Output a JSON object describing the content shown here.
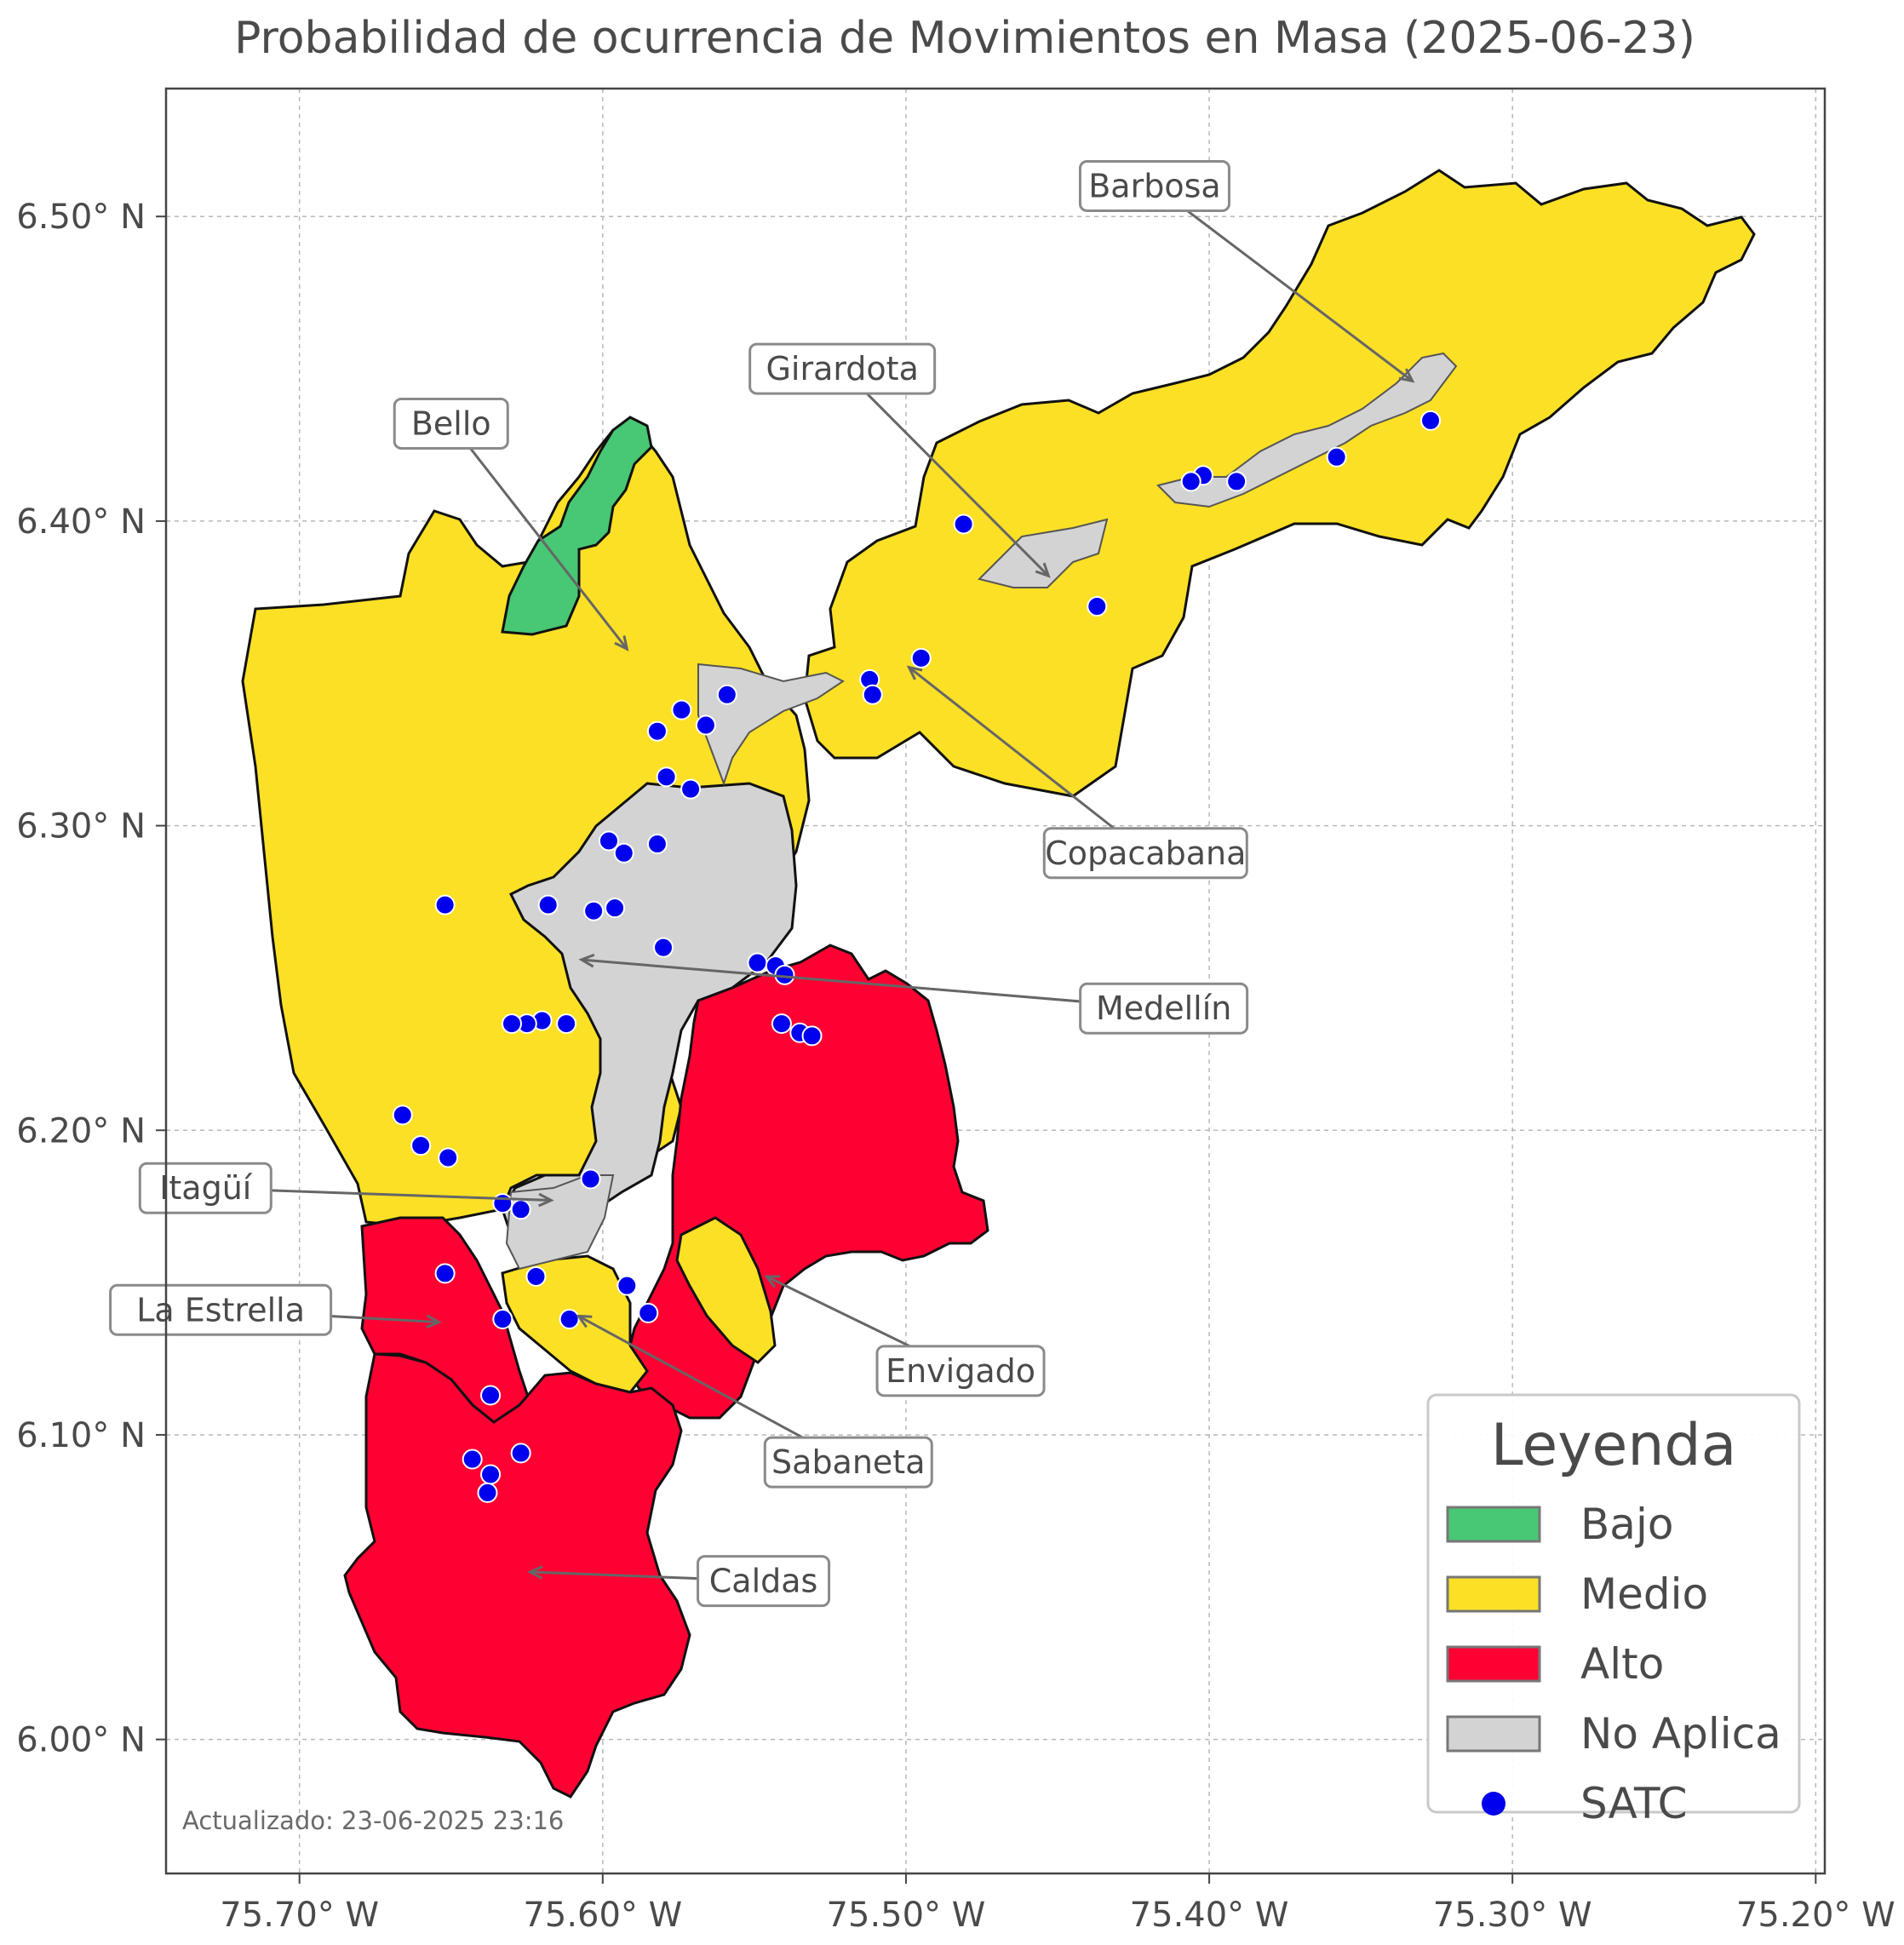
{
  "title": "Probabilidad de ocurrencia de Movimientos en Masa (2025-06-23)",
  "updated": "Actualizado: 23-06-2025 23:16",
  "axes": {
    "x_ticks": [
      "75.70° W",
      "75.60° W",
      "75.50° W",
      "75.40° W",
      "75.30° W",
      "75.20° W"
    ],
    "y_ticks": [
      "6.50° N",
      "6.40° N",
      "6.30° N",
      "6.20° N",
      "6.10° N",
      "6.00° N"
    ],
    "x_values": [
      -75.7,
      -75.6,
      -75.5,
      -75.4,
      -75.3,
      -75.2
    ],
    "y_values": [
      6.5,
      6.4,
      6.3,
      6.2,
      6.1,
      6.0
    ],
    "grid": true,
    "lon_range": [
      -75.744,
      -75.197
    ],
    "lat_range": [
      5.956,
      6.542
    ]
  },
  "legend": {
    "title": "Leyenda",
    "items": [
      {
        "label": "Bajo",
        "color": "#48c774",
        "kind": "patch"
      },
      {
        "label": "Medio",
        "color": "#fbe025",
        "kind": "patch"
      },
      {
        "label": "Alto",
        "color": "#ff0033",
        "kind": "patch"
      },
      {
        "label": "No Aplica",
        "color": "#d3d3d3",
        "kind": "patch"
      },
      {
        "label": "SATC",
        "color": "#0000ee",
        "kind": "dot"
      }
    ]
  },
  "municipalities": [
    {
      "name": "Barbosa",
      "level": "Medio"
    },
    {
      "name": "Girardota",
      "level": "Medio"
    },
    {
      "name": "Bello",
      "level": "Medio"
    },
    {
      "name": "Copacabana",
      "level": "Medio"
    },
    {
      "name": "Medellín",
      "level": "Medio"
    },
    {
      "name": "Itagüí",
      "level": "Medio"
    },
    {
      "name": "La Estrella",
      "level": "Alto"
    },
    {
      "name": "Envigado",
      "level": "Alto"
    },
    {
      "name": "Sabaneta",
      "level": "Medio"
    },
    {
      "name": "Caldas",
      "level": "Alto"
    }
  ],
  "labels": [
    {
      "name": "Barbosa",
      "lon": -75.418,
      "lat": 6.51,
      "arrow_lon": -75.333,
      "arrow_lat": 6.446
    },
    {
      "name": "Girardota",
      "lon": -75.521,
      "lat": 6.45,
      "arrow_lon": -75.453,
      "arrow_lat": 6.382
    },
    {
      "name": "Bello",
      "lon": -75.65,
      "lat": 6.432,
      "arrow_lon": -75.592,
      "arrow_lat": 6.358
    },
    {
      "name": "Copacabana",
      "lon": -75.421,
      "lat": 6.291,
      "arrow_lon": -75.499,
      "arrow_lat": 6.352
    },
    {
      "name": "Medellín",
      "lon": -75.415,
      "lat": 6.24,
      "arrow_lon": -75.607,
      "arrow_lat": 6.256
    },
    {
      "name": "Itagüí",
      "lon": -75.731,
      "lat": 6.181,
      "arrow_lon": -75.617,
      "arrow_lat": 6.177
    },
    {
      "name": "La Estrella",
      "lon": -75.726,
      "lat": 6.141,
      "arrow_lon": -75.654,
      "arrow_lat": 6.137
    },
    {
      "name": "Envigado",
      "lon": -75.482,
      "lat": 6.121,
      "arrow_lon": -75.546,
      "arrow_lat": 6.152
    },
    {
      "name": "Sabaneta",
      "lon": -75.519,
      "lat": 6.091,
      "arrow_lon": -75.608,
      "arrow_lat": 6.139
    },
    {
      "name": "Caldas",
      "lon": -75.547,
      "lat": 6.052,
      "arrow_lon": -75.624,
      "arrow_lat": 6.055
    }
  ],
  "satc_points": [
    [
      -75.327,
      6.433
    ],
    [
      -75.358,
      6.421
    ],
    [
      -75.391,
      6.413
    ],
    [
      -75.402,
      6.415
    ],
    [
      -75.406,
      6.413
    ],
    [
      -75.481,
      6.399
    ],
    [
      -75.437,
      6.372
    ],
    [
      -75.495,
      6.355
    ],
    [
      -75.512,
      6.348
    ],
    [
      -75.511,
      6.343
    ],
    [
      -75.559,
      6.343
    ],
    [
      -75.566,
      6.333
    ],
    [
      -75.574,
      6.338
    ],
    [
      -75.582,
      6.331
    ],
    [
      -75.579,
      6.316
    ],
    [
      -75.571,
      6.312
    ],
    [
      -75.598,
      6.295
    ],
    [
      -75.593,
      6.291
    ],
    [
      -75.582,
      6.294
    ],
    [
      -75.652,
      6.274
    ],
    [
      -75.618,
      6.274
    ],
    [
      -75.603,
      6.272
    ],
    [
      -75.596,
      6.273
    ],
    [
      -75.58,
      6.26
    ],
    [
      -75.549,
      6.255
    ],
    [
      -75.543,
      6.254
    ],
    [
      -75.54,
      6.251
    ],
    [
      -75.541,
      6.235
    ],
    [
      -75.535,
      6.232
    ],
    [
      -75.531,
      6.231
    ],
    [
      -75.62,
      6.236
    ],
    [
      -75.612,
      6.235
    ],
    [
      -75.625,
      6.235
    ],
    [
      -75.63,
      6.235
    ],
    [
      -75.666,
      6.205
    ],
    [
      -75.66,
      6.195
    ],
    [
      -75.651,
      6.191
    ],
    [
      -75.604,
      6.184
    ],
    [
      -75.633,
      6.176
    ],
    [
      -75.627,
      6.174
    ],
    [
      -75.652,
      6.153
    ],
    [
      -75.622,
      6.152
    ],
    [
      -75.592,
      6.149
    ],
    [
      -75.585,
      6.14
    ],
    [
      -75.611,
      6.138
    ],
    [
      -75.633,
      6.138
    ],
    [
      -75.637,
      6.113
    ],
    [
      -75.643,
      6.092
    ],
    [
      -75.627,
      6.094
    ],
    [
      -75.637,
      6.087
    ],
    [
      -75.638,
      6.081
    ]
  ]
}
